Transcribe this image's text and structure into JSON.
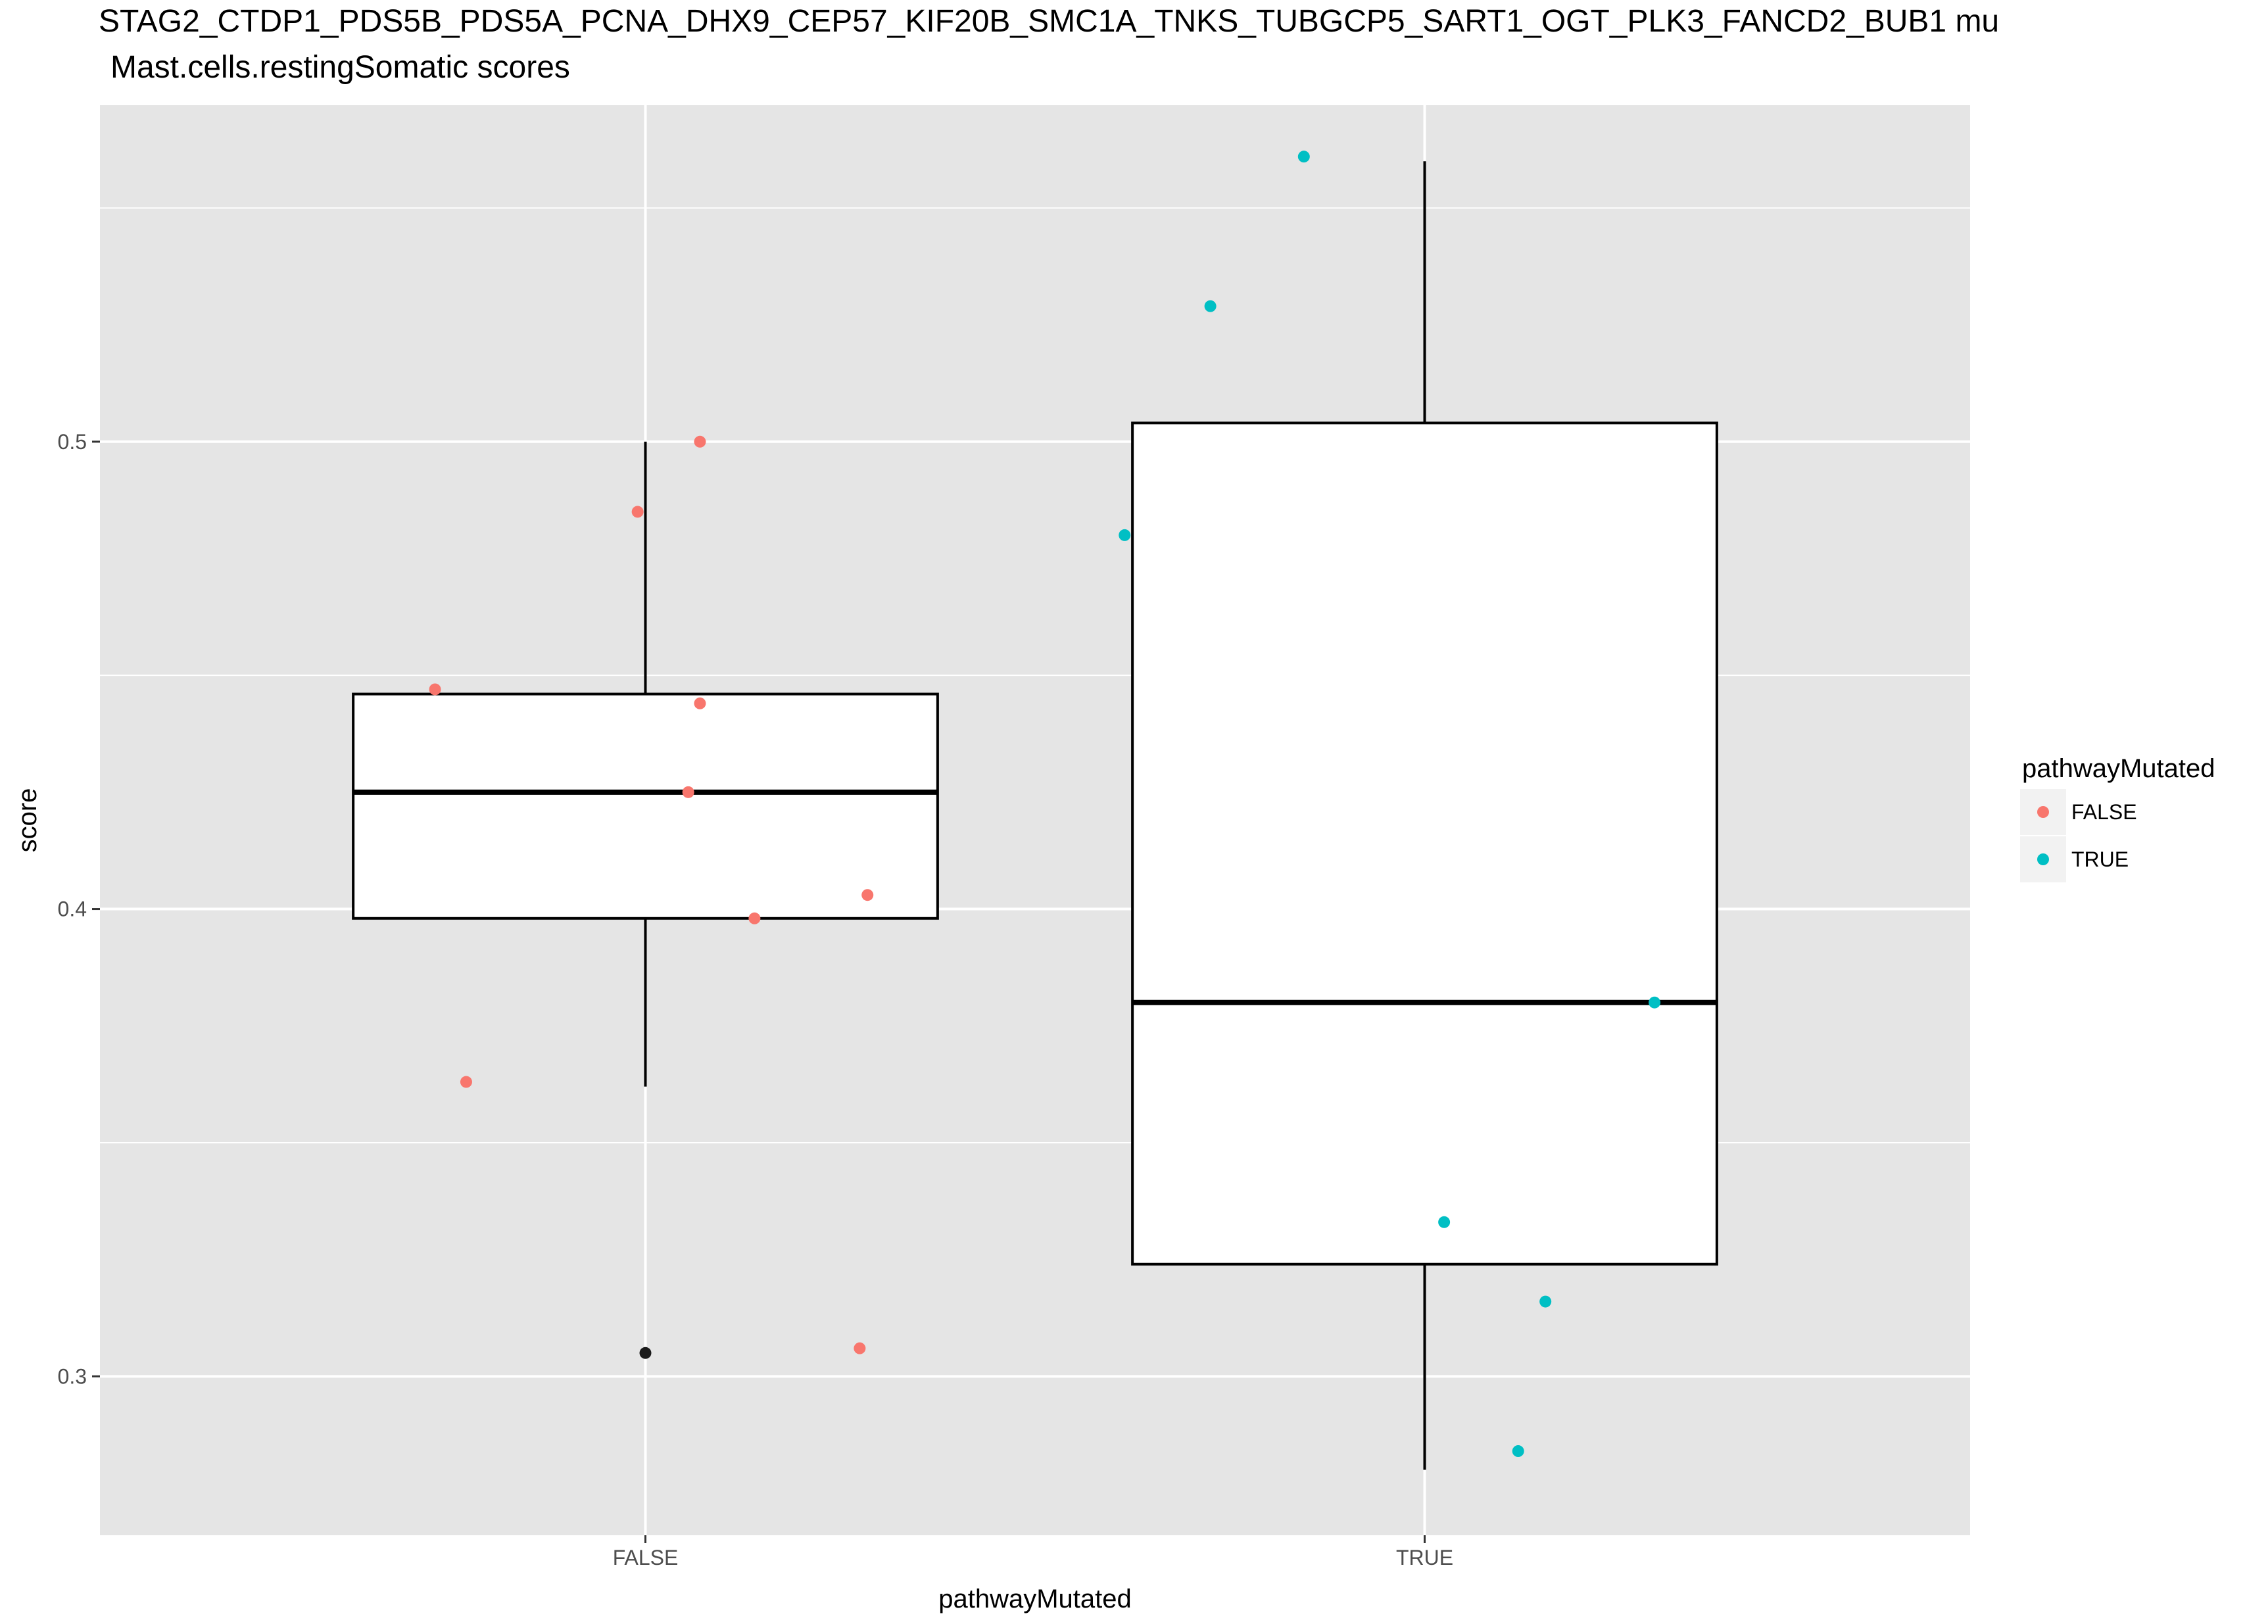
{
  "chart_data": {
    "type": "box",
    "title": "STAG2_CTDP1_PDS5B_PDS5A_PCNA_DHX9_CEP57_KIF20B_SMC1A_TNKS_TUBGCP5_SART1_OGT_PLK3_FANCD2_BUB1 mu",
    "subtitle": "Mast.cells.restingSomatic scores",
    "xlabel": "pathwayMutated",
    "ylabel": "score",
    "categories": [
      "FALSE",
      "TRUE"
    ],
    "ylim": [
      0.266,
      0.572
    ],
    "y_ticks": [
      0.3,
      0.4,
      0.5
    ],
    "y_tick_labels": [
      "0.3",
      "0.4",
      "0.5"
    ],
    "grid": true,
    "legend_position": "right",
    "legend": {
      "title": "pathwayMutated",
      "entries": [
        {
          "label": "FALSE",
          "color": "#F8766D"
        },
        {
          "label": "TRUE",
          "color": "#00BFC4"
        }
      ]
    },
    "boxes": [
      {
        "category": "FALSE",
        "lower_whisker": 0.362,
        "q1": 0.398,
        "median": 0.425,
        "q3": 0.446,
        "upper_whisker": 0.5,
        "outliers": [
          0.305
        ]
      },
      {
        "category": "TRUE",
        "lower_whisker": 0.28,
        "q1": 0.324,
        "median": 0.38,
        "q3": 0.504,
        "upper_whisker": 0.56,
        "outliers": []
      }
    ],
    "points": [
      {
        "category": "FALSE",
        "x_offset": -0.27,
        "y": 0.447
      },
      {
        "category": "FALSE",
        "x_offset": -0.23,
        "y": 0.363
      },
      {
        "category": "FALSE",
        "x_offset": -0.01,
        "y": 0.485
      },
      {
        "category": "FALSE",
        "x_offset": 0.07,
        "y": 0.5
      },
      {
        "category": "FALSE",
        "x_offset": 0.07,
        "y": 0.444
      },
      {
        "category": "FALSE",
        "x_offset": 0.055,
        "y": 0.425
      },
      {
        "category": "FALSE",
        "x_offset": 0.14,
        "y": 0.398
      },
      {
        "category": "FALSE",
        "x_offset": 0.285,
        "y": 0.403
      },
      {
        "category": "FALSE",
        "x_offset": 0.275,
        "y": 0.306
      },
      {
        "category": "TRUE",
        "x_offset": -0.385,
        "y": 0.48
      },
      {
        "category": "TRUE",
        "x_offset": -0.275,
        "y": 0.529
      },
      {
        "category": "TRUE",
        "x_offset": -0.155,
        "y": 0.561
      },
      {
        "category": "TRUE",
        "x_offset": 0.295,
        "y": 0.38
      },
      {
        "category": "TRUE",
        "x_offset": 0.025,
        "y": 0.333
      },
      {
        "category": "TRUE",
        "x_offset": 0.155,
        "y": 0.316
      },
      {
        "category": "TRUE",
        "x_offset": 0.12,
        "y": 0.284
      }
    ],
    "box_style": {
      "fill": "#FFFFFF",
      "stroke": "#000000",
      "outlier_color": "#1a1a1a"
    },
    "panel_style": {
      "background": "#E5E5E5",
      "grid_color": "#FFFFFF"
    }
  }
}
